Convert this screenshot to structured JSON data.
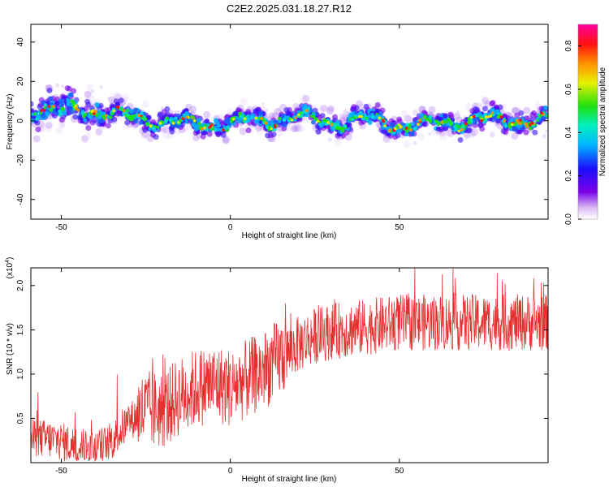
{
  "title": "C2E2.2025.031.18.27.R12",
  "chart_data": [
    {
      "type": "heatmap",
      "xlabel": "Height of straight line (km)",
      "ylabel": "Frequency (Hz)",
      "xlim": [
        -59,
        94
      ],
      "ylim": [
        -50,
        49
      ],
      "xticks": [
        -50,
        0,
        50
      ],
      "yticks": [
        -40,
        -20,
        0,
        20,
        40
      ],
      "grid": false,
      "colorbar": {
        "label": "Normalized spectral amplitude",
        "range": [
          0.0,
          0.9
        ],
        "ticks": [
          0.0,
          0.2,
          0.4,
          0.6,
          0.8
        ],
        "colormap": "rainbow (violet-blue-cyan-green-yellow-orange-red-magenta)"
      },
      "ridge": {
        "description": "band of high amplitude near 0-8 Hz across full height range",
        "x": [
          -58,
          -50,
          -45,
          -40,
          -30,
          -20,
          -10,
          0,
          10,
          20,
          30,
          40,
          50,
          55,
          60,
          70,
          80,
          90,
          94
        ],
        "center_hz": [
          6,
          5,
          6,
          5,
          2,
          0,
          -2,
          -1,
          0,
          2,
          -1,
          1,
          -2,
          -3,
          -1,
          0,
          1,
          0,
          0
        ]
      }
    },
    {
      "type": "line",
      "xlabel": "Height of straight line (km)",
      "ylabel": "SNR (10 * v/v)",
      "yscale_note": "(x10^4)",
      "xlim": [
        -59,
        94
      ],
      "ylim": [
        0,
        2.2
      ],
      "xticks": [
        -50,
        0,
        50
      ],
      "yticks": [
        0.5,
        1.0,
        1.5,
        2.0
      ],
      "grid": false,
      "series": [
        {
          "color": "#e53030",
          "envelope_x": [
            -59,
            -55,
            -50,
            -45,
            -40,
            -35,
            -30,
            -25,
            -20,
            -15,
            -10,
            -5,
            0,
            5,
            10,
            15,
            20,
            25,
            30,
            40,
            50,
            60,
            70,
            80,
            94
          ],
          "envelope_y": [
            0.25,
            0.25,
            0.22,
            0.15,
            0.12,
            0.22,
            0.45,
            0.55,
            0.55,
            0.7,
            0.8,
            0.85,
            0.8,
            0.9,
            1.0,
            1.15,
            1.3,
            1.4,
            1.45,
            1.5,
            1.55,
            1.55,
            1.55,
            1.55,
            1.55
          ],
          "notes": "noisy SNR trace rising from ~0.2 at -59 km to ~1.5 above 20 km; peaks reach ~2.2"
        }
      ]
    }
  ]
}
